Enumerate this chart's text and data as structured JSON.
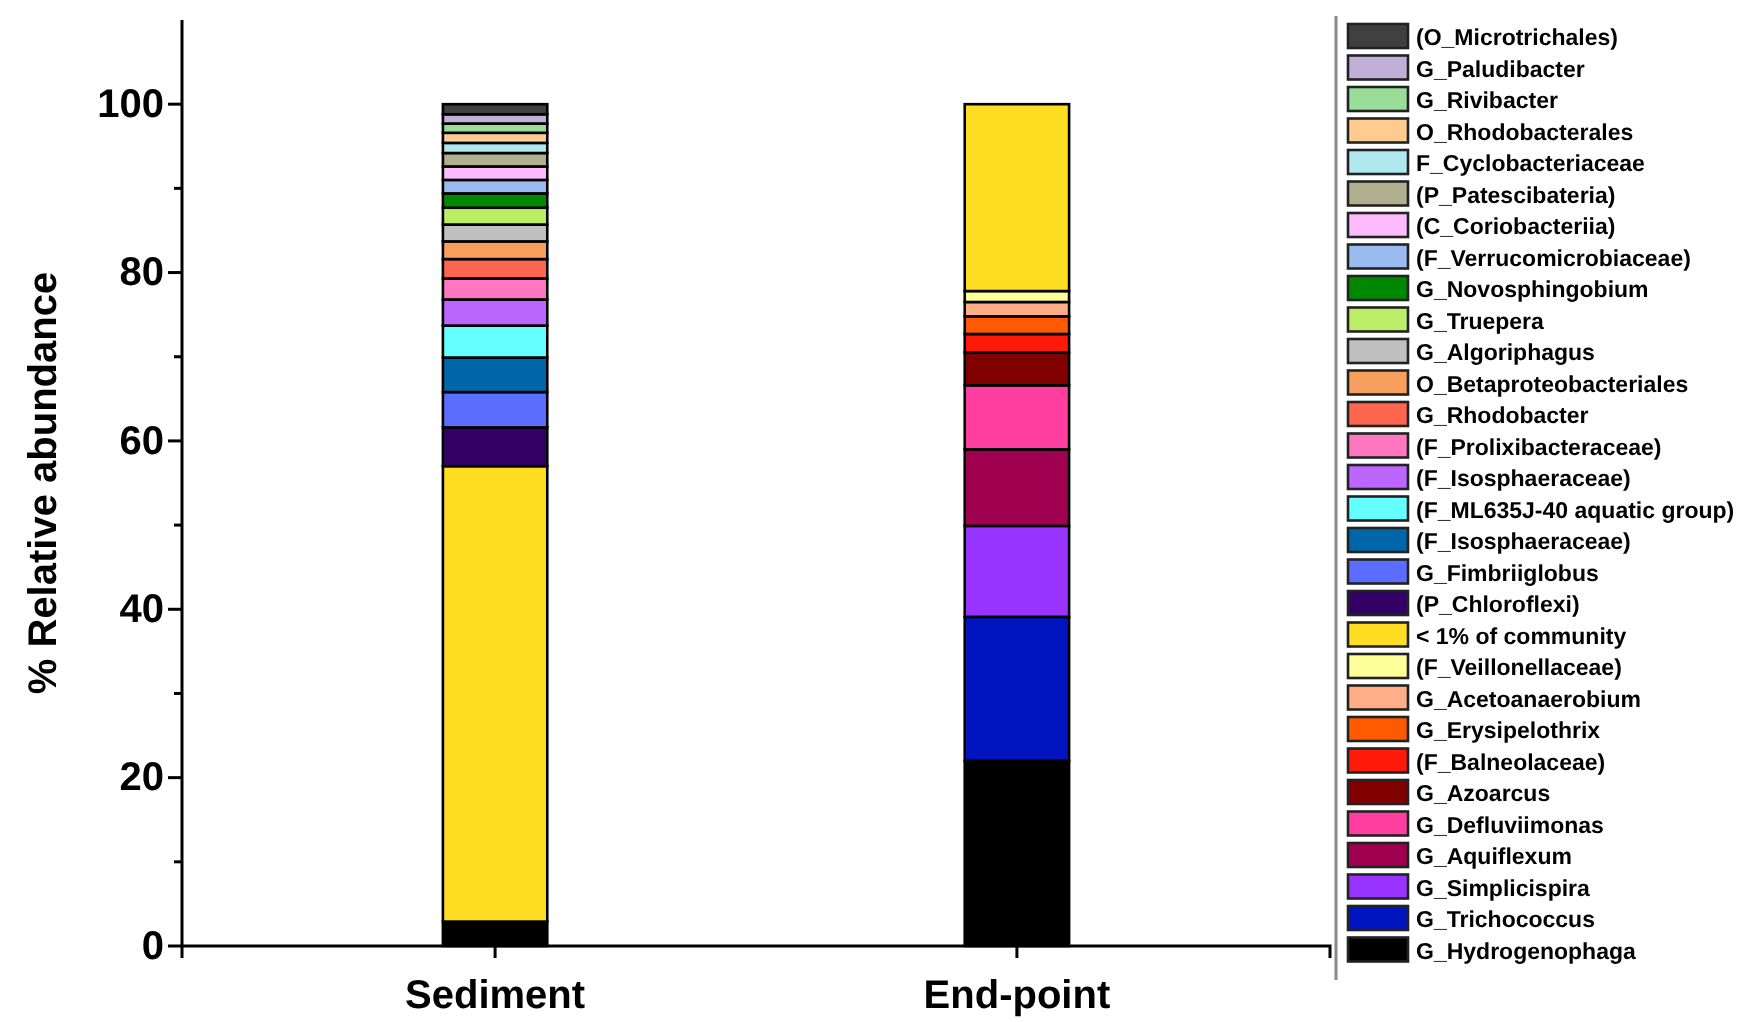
{
  "chart_data": {
    "type": "bar",
    "stacked": true,
    "ylabel": "% Relative abundance",
    "categories": [
      "Sediment",
      "End-point"
    ],
    "ylim": [
      0,
      110
    ],
    "yticks": [
      0,
      {
        "value": 10,
        "label": null
      },
      20,
      {
        "value": 30,
        "label": null
      },
      40,
      {
        "value": 50,
        "label": null
      },
      60,
      {
        "value": 70,
        "label": null
      },
      80,
      {
        "value": 90,
        "label": null
      },
      100
    ],
    "legend": "right",
    "grid": false,
    "series": [
      {
        "name": "G_Hydrogenophaga",
        "color": "#000000",
        "values": [
          2.9,
          22.0
        ]
      },
      {
        "name": "G_Trichococcus",
        "color": "#0015c0",
        "values": [
          0,
          17.1
        ]
      },
      {
        "name": "G_Simplicispira",
        "color": "#9933ff",
        "values": [
          0,
          10.8
        ]
      },
      {
        "name": "G_Aquiflexum",
        "color": "#a00050",
        "values": [
          0,
          9.1
        ]
      },
      {
        "name": "G_Defluviimonas",
        "color": "#ff3ea0",
        "values": [
          0,
          7.6
        ]
      },
      {
        "name": "G_Azoarcus",
        "color": "#800000",
        "values": [
          0,
          3.9
        ]
      },
      {
        "name": "(F_Balneolaceae)",
        "color": "#ff1a0a",
        "values": [
          0,
          2.2
        ]
      },
      {
        "name": "G_Erysipelothrix",
        "color": "#ff5a00",
        "values": [
          0,
          2.1
        ]
      },
      {
        "name": "G_Acetoanaerobium",
        "color": "#ffae88",
        "values": [
          0,
          1.7
        ]
      },
      {
        "name": "(F_Veillonellaceae)",
        "color": "#ffff99",
        "values": [
          0,
          1.3
        ]
      },
      {
        "name": "< 1% of community",
        "color": "#ffdd22",
        "values": [
          54.1,
          22.2
        ]
      },
      {
        "name": "(P_Chloroflexi)",
        "color": "#330066",
        "values": [
          4.6,
          0
        ]
      },
      {
        "name": "G_Fimbriiglobus",
        "color": "#5a6dff",
        "values": [
          4.2,
          0
        ]
      },
      {
        "name": "(F_Isosphaeraceae)",
        "color": "#0066aa",
        "values": [
          4.1,
          0
        ]
      },
      {
        "name": "(F_ML635J-40 aquatic group)",
        "color": "#66ffff",
        "values": [
          3.8,
          0
        ]
      },
      {
        "name": "(F_Isosphaeraceae)",
        "color": "#bb66ff",
        "values": [
          3.1,
          0
        ]
      },
      {
        "name": "(F_Prolixibacteraceae)",
        "color": "#ff77c0",
        "values": [
          2.5,
          0
        ]
      },
      {
        "name": "G_Rhodobacter",
        "color": "#ff6650",
        "values": [
          2.3,
          0
        ]
      },
      {
        "name": "O_Betaproteobacteriales",
        "color": "#f7a05e",
        "values": [
          2.1,
          0
        ]
      },
      {
        "name": "G_Algoriphagus",
        "color": "#c0c0c0",
        "values": [
          2.0,
          0
        ]
      },
      {
        "name": "G_Truepera",
        "color": "#bbee66",
        "values": [
          2.0,
          0
        ]
      },
      {
        "name": "G_Novosphingobium",
        "color": "#008800",
        "values": [
          1.7,
          0
        ]
      },
      {
        "name": "(F_Verrucomicrobiaceae)",
        "color": "#99bbf0",
        "values": [
          1.6,
          0
        ]
      },
      {
        "name": "(C_Coriobacteriia)",
        "color": "#ffbbff",
        "values": [
          1.6,
          0
        ]
      },
      {
        "name": "(P_Patescibateria)",
        "color": "#b0b090",
        "values": [
          1.6,
          0
        ]
      },
      {
        "name": "F_Cyclobacteriaceae",
        "color": "#b0e8f0",
        "values": [
          1.2,
          0
        ]
      },
      {
        "name": "O_Rhodobacterales",
        "color": "#ffcc90",
        "values": [
          1.2,
          0
        ]
      },
      {
        "name": "G_Rivibacter",
        "color": "#99dd99",
        "values": [
          1.1,
          0
        ]
      },
      {
        "name": "G_Paludibacter",
        "color": "#c0b0d8",
        "values": [
          1.1,
          0
        ]
      },
      {
        "name": "(O_Microtrichales)",
        "color": "#404040",
        "values": [
          1.2,
          0
        ]
      }
    ]
  }
}
